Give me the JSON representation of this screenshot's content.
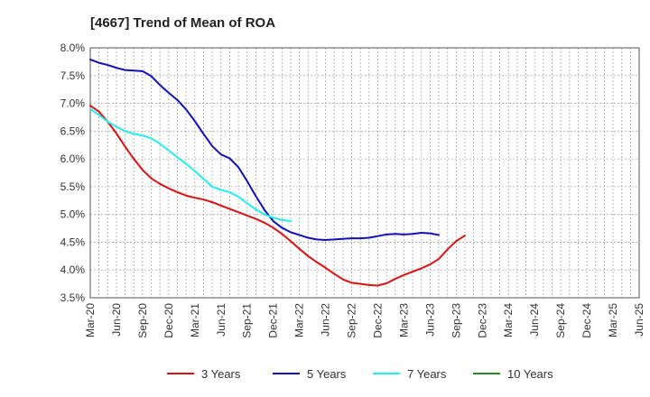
{
  "chart_data": {
    "type": "line",
    "title": "[4667]  Trend of Mean of ROA",
    "xlabel": "",
    "ylabel": "",
    "ylim": [
      3.5,
      8.0
    ],
    "y_ticks": [
      "8.0%",
      "7.5%",
      "7.0%",
      "6.5%",
      "6.0%",
      "5.5%",
      "5.0%",
      "4.5%",
      "4.0%",
      "3.5%"
    ],
    "x_ticks": [
      "Mar-20",
      "Jun-20",
      "Sep-20",
      "Dec-20",
      "Mar-21",
      "Jun-21",
      "Sep-21",
      "Dec-21",
      "Mar-22",
      "Jun-22",
      "Sep-22",
      "Dec-22",
      "Mar-23",
      "Jun-23",
      "Sep-23",
      "Dec-23",
      "Mar-24",
      "Jun-24",
      "Sep-24",
      "Dec-24",
      "Mar-25",
      "Jun-25"
    ],
    "grid": true,
    "legend_position": "bottom",
    "series": [
      {
        "name": "3 Years",
        "color": "#dd1111",
        "points": [
          [
            0,
            6.96
          ],
          [
            1,
            6.85
          ],
          [
            2,
            6.67
          ],
          [
            3,
            6.46
          ],
          [
            4,
            6.22
          ],
          [
            5,
            6.0
          ],
          [
            6,
            5.8
          ],
          [
            7,
            5.65
          ],
          [
            8,
            5.55
          ],
          [
            9,
            5.47
          ],
          [
            10,
            5.4
          ],
          [
            11,
            5.34
          ],
          [
            12,
            5.3
          ],
          [
            13,
            5.27
          ],
          [
            14,
            5.22
          ],
          [
            15,
            5.16
          ],
          [
            16,
            5.1
          ],
          [
            17,
            5.04
          ],
          [
            18,
            4.98
          ],
          [
            19,
            4.92
          ],
          [
            20,
            4.85
          ],
          [
            21,
            4.76
          ],
          [
            22,
            4.65
          ],
          [
            23,
            4.52
          ],
          [
            24,
            4.38
          ],
          [
            25,
            4.25
          ],
          [
            26,
            4.14
          ],
          [
            27,
            4.04
          ],
          [
            28,
            3.93
          ],
          [
            29,
            3.83
          ],
          [
            30,
            3.77
          ],
          [
            31,
            3.75
          ],
          [
            32,
            3.73
          ],
          [
            33,
            3.72
          ],
          [
            34,
            3.76
          ],
          [
            35,
            3.84
          ],
          [
            36,
            3.91
          ],
          [
            37,
            3.97
          ],
          [
            38,
            4.03
          ],
          [
            39,
            4.1
          ],
          [
            40,
            4.2
          ],
          [
            41,
            4.37
          ],
          [
            42,
            4.52
          ],
          [
            43,
            4.62
          ]
        ]
      },
      {
        "name": "5 Years",
        "color": "#1111bb",
        "points": [
          [
            0,
            7.79
          ],
          [
            1,
            7.73
          ],
          [
            2,
            7.69
          ],
          [
            3,
            7.64
          ],
          [
            4,
            7.6
          ],
          [
            5,
            7.59
          ],
          [
            6,
            7.58
          ],
          [
            7,
            7.49
          ],
          [
            8,
            7.33
          ],
          [
            9,
            7.19
          ],
          [
            10,
            7.06
          ],
          [
            11,
            6.89
          ],
          [
            12,
            6.68
          ],
          [
            13,
            6.45
          ],
          [
            14,
            6.23
          ],
          [
            15,
            6.08
          ],
          [
            16,
            6.01
          ],
          [
            17,
            5.85
          ],
          [
            18,
            5.6
          ],
          [
            19,
            5.33
          ],
          [
            20,
            5.08
          ],
          [
            21,
            4.88
          ],
          [
            22,
            4.76
          ],
          [
            23,
            4.68
          ],
          [
            24,
            4.63
          ],
          [
            25,
            4.58
          ],
          [
            26,
            4.55
          ],
          [
            27,
            4.54
          ],
          [
            28,
            4.55
          ],
          [
            29,
            4.56
          ],
          [
            30,
            4.57
          ],
          [
            31,
            4.57
          ],
          [
            32,
            4.58
          ],
          [
            33,
            4.61
          ],
          [
            34,
            4.64
          ],
          [
            35,
            4.65
          ],
          [
            36,
            4.64
          ],
          [
            37,
            4.65
          ],
          [
            38,
            4.67
          ],
          [
            39,
            4.66
          ],
          [
            40,
            4.63
          ]
        ]
      },
      {
        "name": "7 Years",
        "color": "#22eeee",
        "points": [
          [
            0,
            6.9
          ],
          [
            1,
            6.79
          ],
          [
            2,
            6.67
          ],
          [
            3,
            6.58
          ],
          [
            4,
            6.5
          ],
          [
            5,
            6.45
          ],
          [
            6,
            6.42
          ],
          [
            7,
            6.37
          ],
          [
            8,
            6.27
          ],
          [
            9,
            6.15
          ],
          [
            10,
            6.03
          ],
          [
            11,
            5.91
          ],
          [
            12,
            5.78
          ],
          [
            13,
            5.64
          ],
          [
            14,
            5.5
          ],
          [
            15,
            5.44
          ],
          [
            16,
            5.4
          ],
          [
            17,
            5.32
          ],
          [
            18,
            5.2
          ],
          [
            19,
            5.09
          ],
          [
            20,
            5.0
          ],
          [
            21,
            4.94
          ],
          [
            22,
            4.9
          ],
          [
            23,
            4.88
          ]
        ]
      },
      {
        "name": "10 Years",
        "color": "#228b22",
        "points": []
      }
    ]
  }
}
